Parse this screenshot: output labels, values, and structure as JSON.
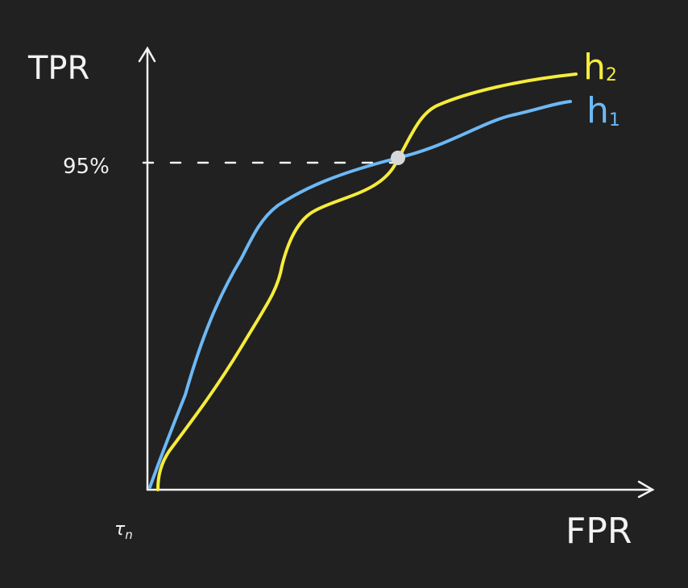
{
  "y_axis_label": "TPR",
  "x_axis_label": "FPR",
  "threshold_label": "95%",
  "curves": [
    {
      "label": "h",
      "subscript": "2"
    },
    {
      "label": "h",
      "subscript": "1"
    }
  ],
  "origin_label": {
    "symbol": "τ",
    "subscript": "n"
  }
}
